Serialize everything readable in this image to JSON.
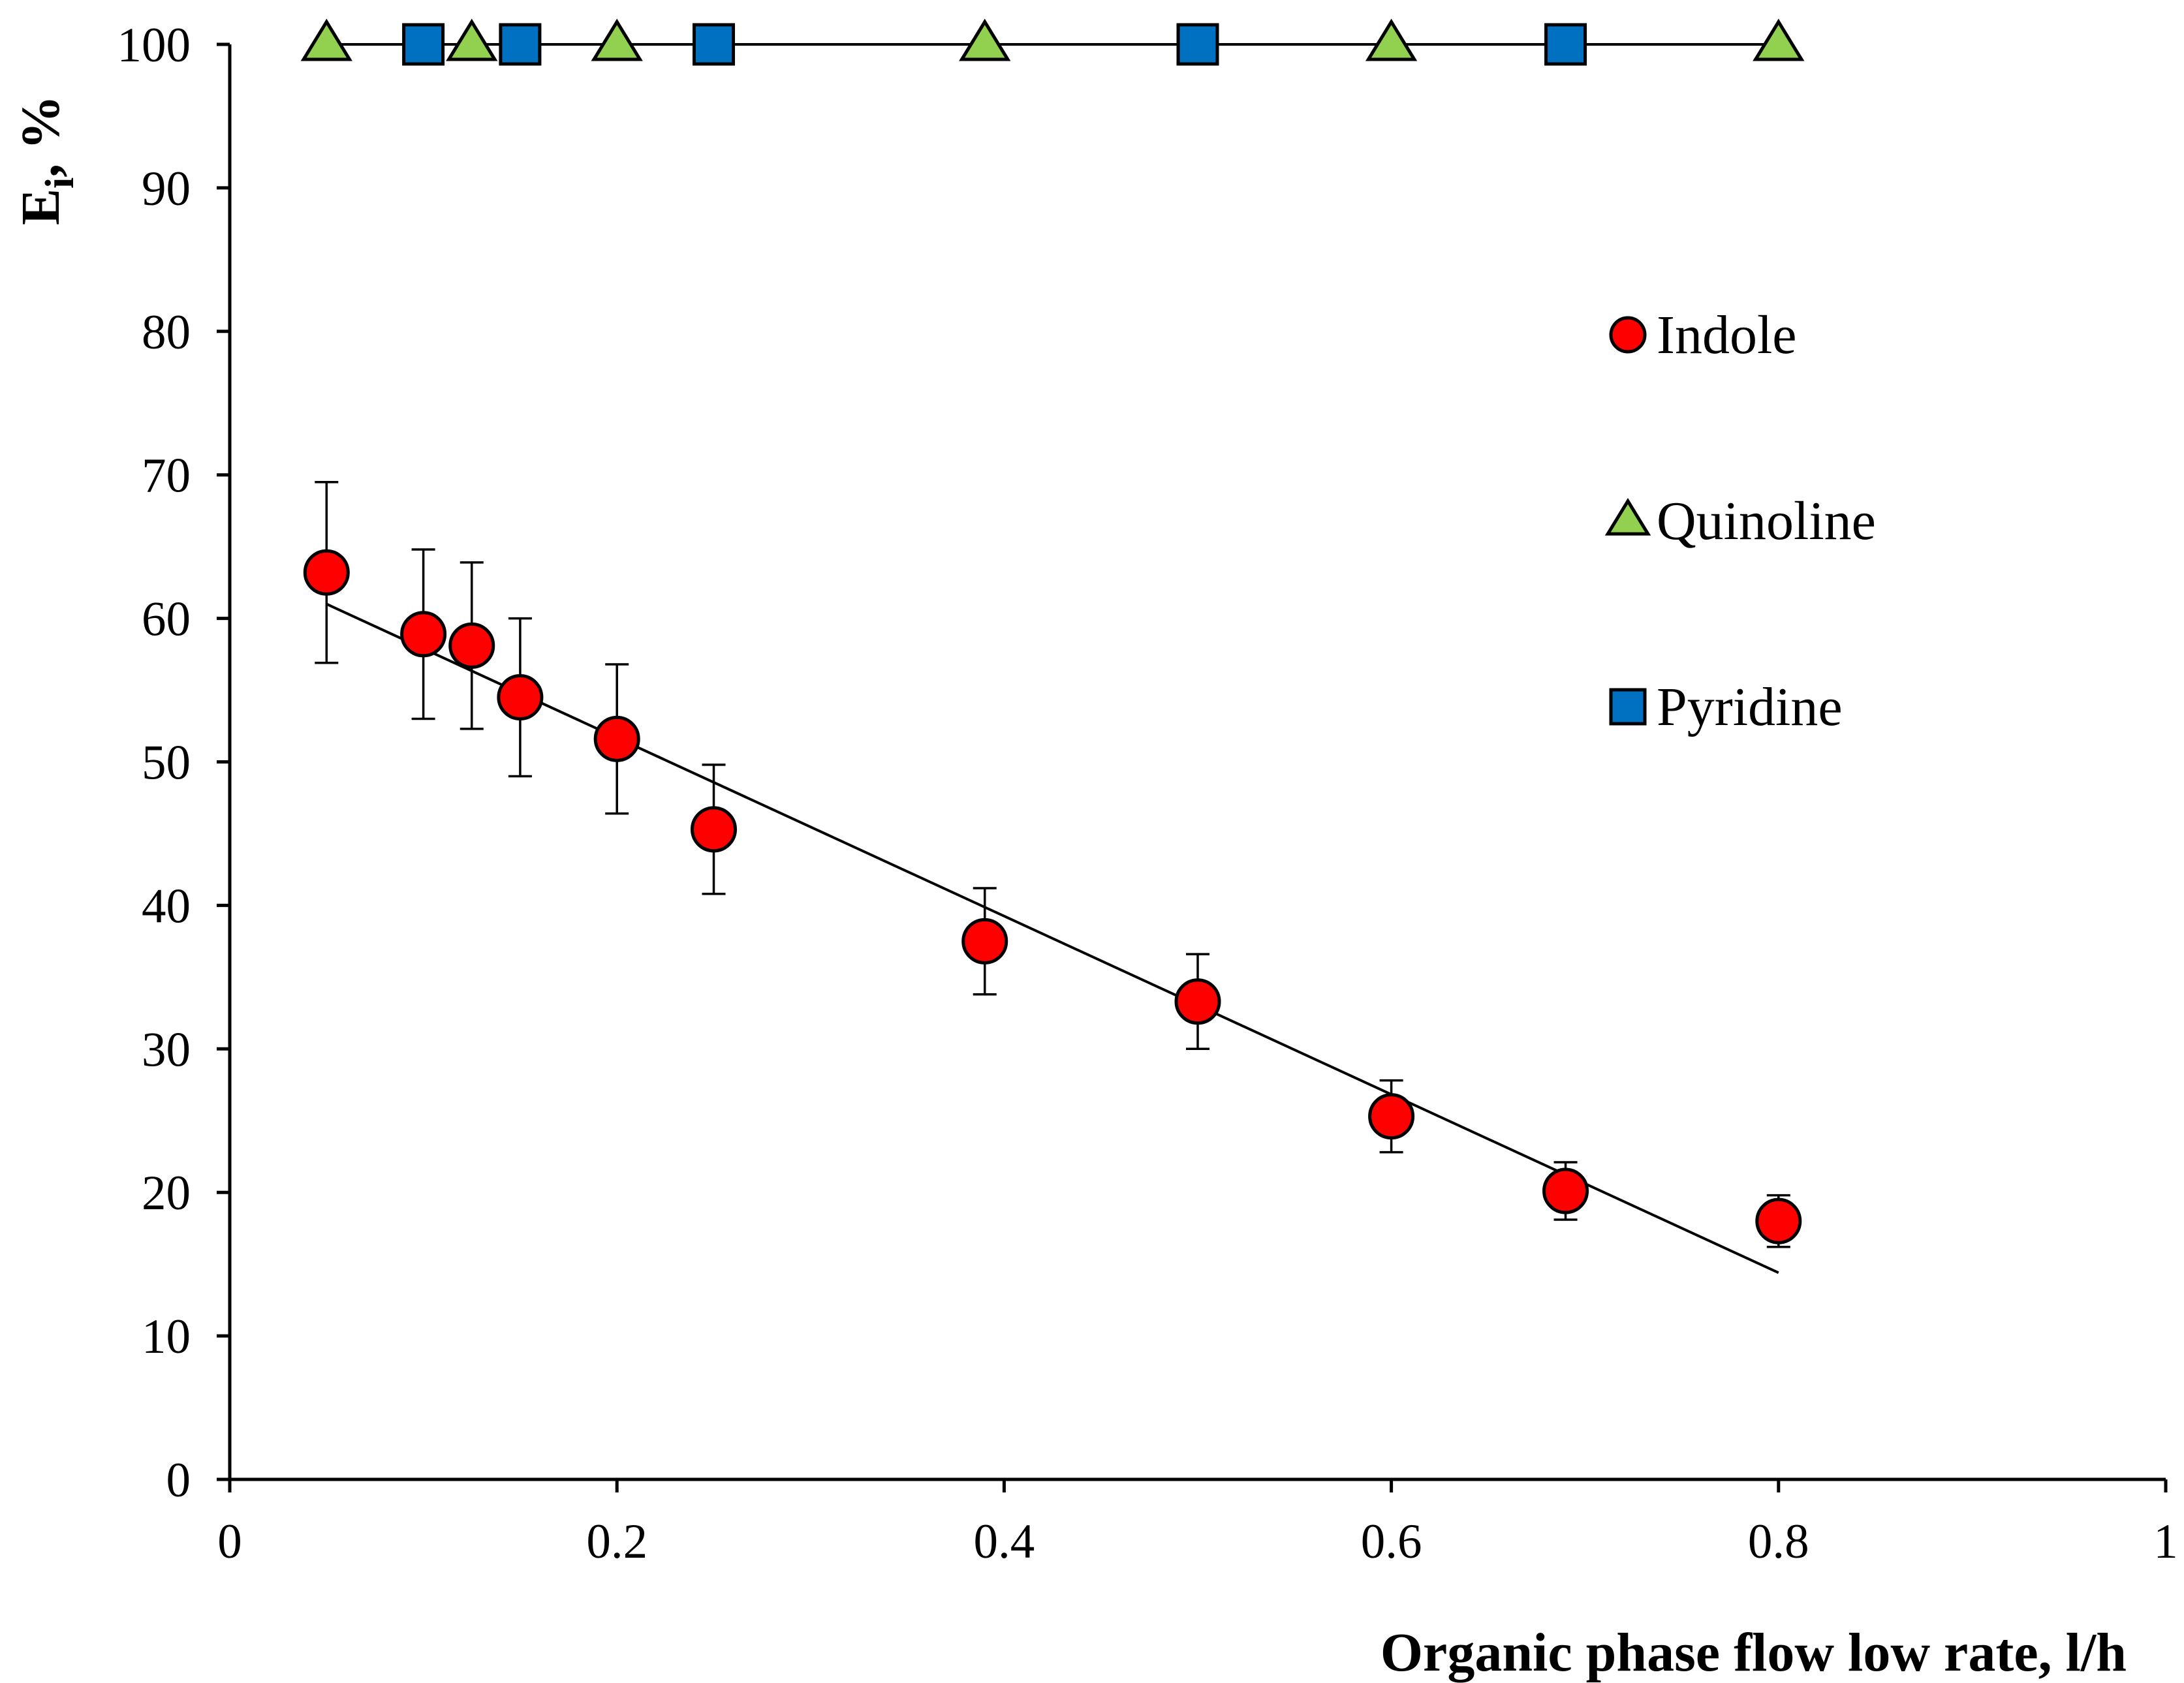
{
  "chart_data": {
    "type": "scatter",
    "title": "",
    "xlabel": "Organic phase flow low rate, l/h",
    "ylabel_main": "E",
    "ylabel_sub": "i",
    "ylabel_suffix": ", %",
    "xlim": [
      0,
      1
    ],
    "ylim": [
      0,
      100
    ],
    "x_ticks": [
      0,
      0.2,
      0.4,
      0.6,
      0.8,
      1
    ],
    "x_tick_labels": [
      "0",
      "0.2",
      "0.4",
      "0.6",
      "0.8",
      "1"
    ],
    "y_ticks": [
      0,
      10,
      20,
      30,
      40,
      50,
      60,
      70,
      80,
      90,
      100
    ],
    "y_tick_labels": [
      "0",
      "10",
      "20",
      "30",
      "40",
      "50",
      "60",
      "70",
      "80",
      "90",
      "100"
    ],
    "grid": false,
    "legend_position": "right",
    "series": [
      {
        "name": "Indole",
        "marker": "circle",
        "color": "#ff0000",
        "x": [
          0.05,
          0.1,
          0.125,
          0.15,
          0.2,
          0.25,
          0.39,
          0.5,
          0.6,
          0.69,
          0.8
        ],
        "y": [
          63.2,
          58.9,
          58.1,
          54.5,
          51.6,
          45.3,
          37.5,
          33.3,
          25.3,
          20.1,
          18.0
        ],
        "error": [
          6.3,
          5.9,
          5.8,
          5.5,
          5.2,
          4.5,
          3.7,
          3.3,
          2.5,
          2.0,
          1.8
        ],
        "trendline": {
          "x": [
            0.05,
            0.8
          ],
          "y": [
            61.0,
            14.4
          ]
        }
      },
      {
        "name": "Quinoline",
        "marker": "triangle",
        "color": "#92d050",
        "x": [
          0.05,
          0.125,
          0.2,
          0.39,
          0.6,
          0.8
        ],
        "y": [
          100,
          100,
          100,
          100,
          100,
          100
        ],
        "trendline": {
          "x": [
            0.05,
            0.8
          ],
          "y": [
            100,
            100
          ]
        }
      },
      {
        "name": "Pyridine",
        "marker": "square",
        "color": "#0070c0",
        "x": [
          0.1,
          0.15,
          0.25,
          0.5,
          0.69
        ],
        "y": [
          100,
          100,
          100,
          100,
          100
        ]
      }
    ]
  }
}
